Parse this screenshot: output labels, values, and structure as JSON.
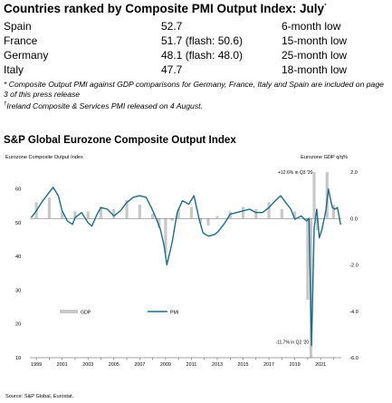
{
  "table": {
    "title": "Countries ranked by Composite PMI Output Index: July",
    "title_mark": "*",
    "rows": [
      {
        "country": "Spain",
        "value": "52.7",
        "note": "6-month low"
      },
      {
        "country": "France",
        "value": "51.7 (flash: 50.6)",
        "note": "15-month low"
      },
      {
        "country": "Germany",
        "value": "48.1 (flash: 48.0)",
        "note": "25-month low"
      },
      {
        "country": "Italy",
        "value": "47.7",
        "note": "18-month low"
      }
    ],
    "footnote1": "* Composite Output PMI against GDP comparisons for Germany, France, Italy and Spain are included on page 3 of this press release",
    "footnote2_mark": "†",
    "footnote2": "Ireland Composite & Services PMI released on 4 August."
  },
  "chart_title": "S&P Global Eurozone Composite Output Index",
  "source": "Source: S&P Global, Eurostat.",
  "colors": {
    "pmi": "#1a6b8c",
    "gdp": "#c8c8c8",
    "zero_line": "#666666"
  },
  "chart_data": {
    "type": "bar+line",
    "left_axis": {
      "label": "Eurozone Composite Output Index",
      "ylim": [
        10,
        65
      ],
      "ticks": [
        10,
        20,
        30,
        40,
        50,
        60
      ]
    },
    "right_axis": {
      "label": "Eurozone GDP q/q%",
      "ylim": [
        -6.0,
        2.0
      ],
      "ticks": [
        2.0,
        0.0,
        -2.0,
        -4.0,
        -6.0
      ],
      "tick_labels": [
        "2.0",
        "0.0",
        "-2.0",
        "-4.0",
        "-6.0"
      ]
    },
    "x_axis": {
      "range": [
        1998.5,
        2022.6
      ],
      "tick_labels": [
        "1999",
        "2001",
        "2003",
        "2005",
        "2007",
        "2009",
        "2011",
        "2013",
        "2015",
        "2017",
        "2019",
        "2021"
      ]
    },
    "legend": {
      "gdp": "GDP",
      "pmi": "PMI",
      "position": "bottom-left"
    },
    "annotations": [
      {
        "text": "+12.6% in Q3 '20",
        "x": 2020.6,
        "y_right": 2.0
      },
      {
        "text": "-11.7% in Q2 '20",
        "x": 2020.3,
        "y_right": -5.4
      }
    ],
    "pmi": {
      "x": [
        1998.6,
        1999.0,
        1999.5,
        2000.0,
        2000.3,
        2000.7,
        2001.0,
        2001.4,
        2001.8,
        2002.0,
        2002.5,
        2003.0,
        2003.3,
        2003.7,
        2004.0,
        2004.5,
        2005.0,
        2005.5,
        2006.0,
        2006.5,
        2007.0,
        2007.5,
        2007.9,
        2008.3,
        2008.6,
        2008.9,
        2009.1,
        2009.5,
        2009.9,
        2010.3,
        2010.8,
        2011.2,
        2011.6,
        2011.9,
        2012.3,
        2012.8,
        2013.1,
        2013.6,
        2014.0,
        2014.5,
        2015.0,
        2015.5,
        2016.0,
        2016.5,
        2017.0,
        2017.5,
        2017.9,
        2018.3,
        2018.7,
        2019.0,
        2019.5,
        2019.9,
        2020.1,
        2020.3,
        2020.5,
        2020.7,
        2020.9,
        2021.1,
        2021.4,
        2021.6,
        2021.9,
        2022.1,
        2022.3,
        2022.55
      ],
      "values": [
        51.5,
        53.5,
        56.5,
        59.0,
        60.5,
        58.0,
        53.5,
        50.5,
        49.5,
        51.5,
        53.0,
        50.0,
        49.0,
        52.5,
        54.5,
        54.0,
        52.0,
        53.5,
        56.0,
        57.5,
        58.0,
        57.5,
        54.5,
        51.0,
        48.0,
        43.0,
        37.5,
        44.0,
        53.0,
        56.5,
        55.5,
        58.0,
        51.0,
        47.0,
        46.0,
        46.5,
        47.5,
        50.0,
        52.5,
        53.0,
        53.5,
        54.0,
        53.0,
        53.0,
        54.5,
        56.5,
        58.0,
        56.0,
        54.0,
        51.0,
        52.0,
        50.5,
        51.3,
        13.6,
        48.5,
        54.0,
        45.5,
        48.0,
        53.5,
        60.0,
        54.5,
        54.0,
        54.5,
        49.4
      ]
    },
    "gdp": {
      "x": [
        1999.0,
        2000.0,
        2001.0,
        2002.0,
        2003.0,
        2004.0,
        2005.0,
        2006.0,
        2007.0,
        2008.0,
        2008.5,
        2009.0,
        2009.5,
        2010.0,
        2011.0,
        2011.7,
        2012.3,
        2013.0,
        2014.0,
        2015.0,
        2016.0,
        2017.0,
        2018.0,
        2019.0,
        2020.0,
        2020.25,
        2020.5,
        2020.75,
        2021.0,
        2021.5,
        2022.0
      ],
      "values": [
        0.7,
        0.9,
        0.3,
        0.3,
        0.3,
        0.5,
        0.4,
        0.8,
        0.6,
        0.2,
        -0.4,
        -1.5,
        -0.1,
        0.4,
        0.5,
        -0.2,
        -0.3,
        0.1,
        0.3,
        0.5,
        0.4,
        0.7,
        0.4,
        0.3,
        -3.5,
        -11.7,
        12.6,
        -0.5,
        0.0,
        2.1,
        0.6
      ]
    }
  }
}
